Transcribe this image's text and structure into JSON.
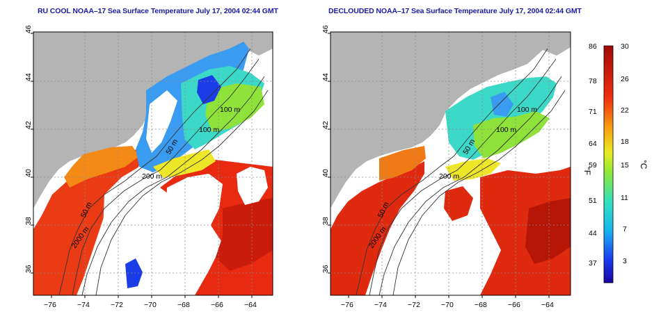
{
  "panels": [
    {
      "id": "left",
      "title": "RU COOL NOAA–17 Sea Surface Temperature July 17, 2004 02:44 GMT",
      "contour_labels": [
        "100 m",
        "100 m",
        "50 m",
        "200 m",
        "50 m",
        "2000 m"
      ]
    },
    {
      "id": "right",
      "title": "DECLOUDED NOAA–17 Sea Surface Temperature July 17, 2004 02:44 GMT",
      "contour_labels": [
        "100 m",
        "100 m",
        "50 m",
        "200 m",
        "50 m",
        "2000 m"
      ]
    }
  ],
  "axes": {
    "x_ticks": [
      "−76",
      "−74",
      "−72",
      "−70",
      "−68",
      "−66",
      "−64"
    ],
    "y_ticks": [
      "46",
      "44",
      "42",
      "40",
      "38",
      "36"
    ]
  },
  "colorbar": {
    "fahrenheit_ticks": [
      "86",
      "78",
      "71",
      "64",
      "59",
      "51",
      "44",
      "37"
    ],
    "celsius_ticks": [
      "30",
      "26",
      "22",
      "18",
      "15",
      "11",
      "7",
      "3"
    ],
    "fahrenheit_unit": "°F",
    "celsius_unit": "°C"
  },
  "colors": {
    "land": "#b4b4b4",
    "cloud": "#ffffff",
    "title": "#1a1aa6",
    "warm": "#e01f10",
    "cool": "#2e8be8"
  }
}
